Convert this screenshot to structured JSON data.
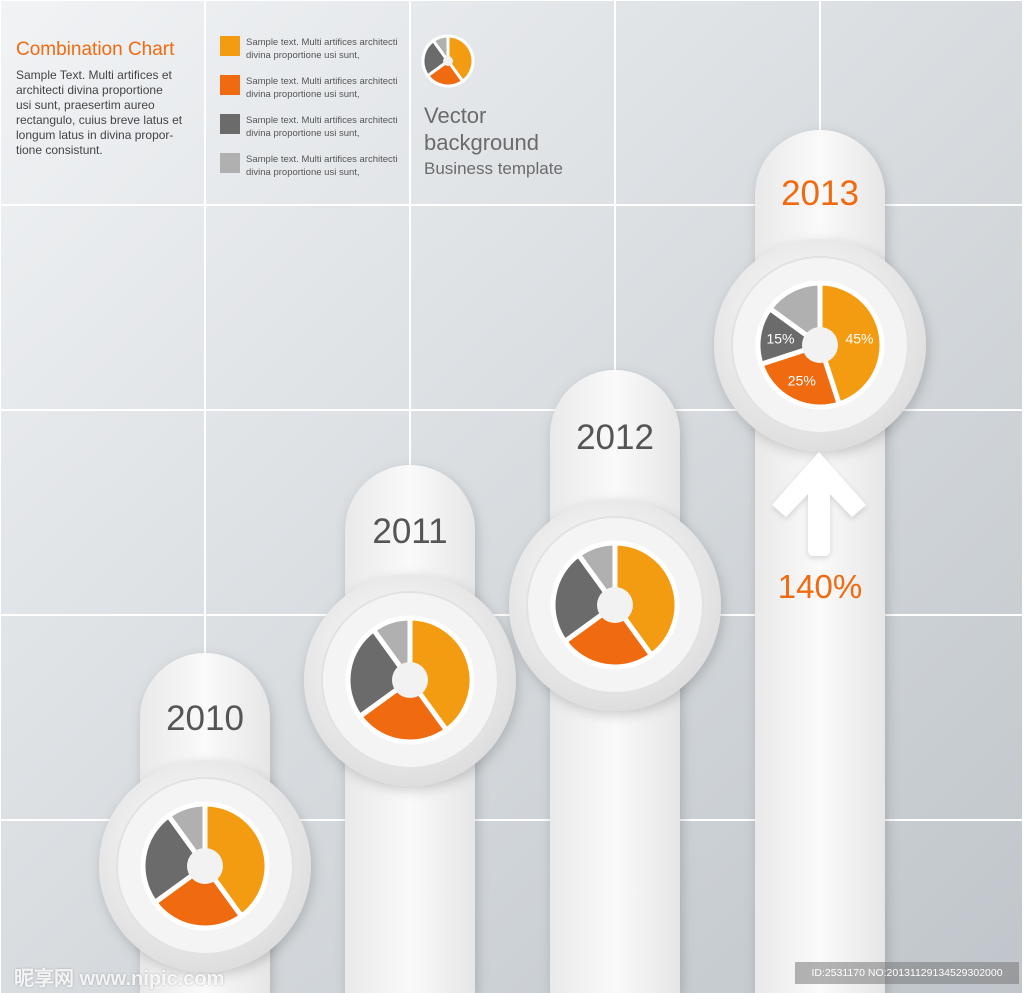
{
  "header": {
    "title": "Combination Chart",
    "body_lines": [
      "Sample Text. Multi artifices et",
      "architecti divina proportione",
      "usi sunt, praesertim aureo",
      "rectangulo, cuius breve latus et",
      "longum latus in divina propor-",
      "tione consistunt."
    ]
  },
  "legend": {
    "items": [
      {
        "color": "#f39c12",
        "line1": "Sample text. Multi artifices architecti",
        "line2": "divina proportione usi sunt,"
      },
      {
        "color": "#f06a10",
        "line1": "Sample text. Multi artifices architecti",
        "line2": "divina proportione usi sunt,"
      },
      {
        "color": "#6b6b6b",
        "line1": "Sample text. Multi artifices architecti",
        "line2": "divina proportione usi sunt,"
      },
      {
        "color": "#b0b0b0",
        "line1": "Sample text. Multi artifices architecti",
        "line2": "divina proportione usi sunt,"
      }
    ]
  },
  "branding": {
    "line1": "Vector",
    "line2": "background",
    "line3": "Business template"
  },
  "growth": {
    "label": "140%",
    "icon": "arrow-up-icon"
  },
  "colors": {
    "accent": "#f06a10",
    "orange": "#f39c12",
    "dark_gray": "#6b6b6b",
    "light_gray": "#b0b0b0",
    "year_gray": "#555555"
  },
  "watermark": {
    "brand": "昵享网 www.nipic.com",
    "id": "ID:2531170 NO:20131129134529302000"
  },
  "chart_data": {
    "type": "pie",
    "series_colors": [
      "#f39c12",
      "#f06a10",
      "#6b6b6b",
      "#b0b0b0"
    ],
    "years": [
      {
        "label": "2010",
        "values": [
          40,
          25,
          25,
          10
        ],
        "slice_labels": [
          "",
          "",
          "",
          ""
        ]
      },
      {
        "label": "2011",
        "values": [
          40,
          25,
          25,
          10
        ],
        "slice_labels": [
          "",
          "",
          "",
          ""
        ]
      },
      {
        "label": "2012",
        "values": [
          40,
          25,
          25,
          10
        ],
        "slice_labels": [
          "",
          "",
          "",
          ""
        ]
      },
      {
        "label": "2013",
        "values": [
          45,
          25,
          15,
          15
        ],
        "slice_labels": [
          "45%",
          "25%",
          "15%",
          ""
        ]
      }
    ],
    "mini_pie": {
      "values": [
        40,
        25,
        25,
        10
      ]
    }
  }
}
